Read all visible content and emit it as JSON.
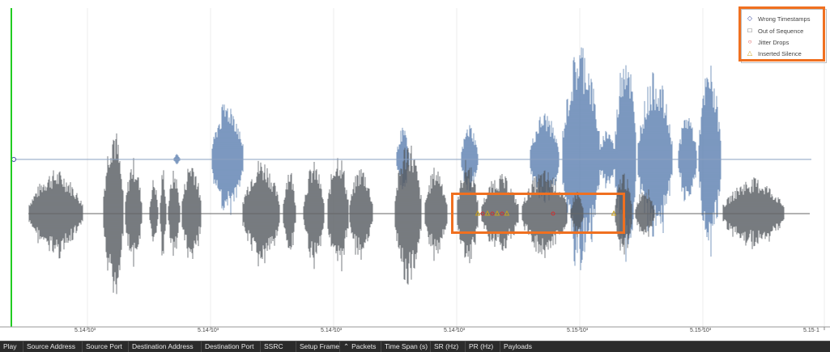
{
  "legend": {
    "items": [
      {
        "label": "Wrong Timestamps",
        "symbol": "◇",
        "color": "#3a4aa0"
      },
      {
        "label": "Out of Sequence",
        "symbol": "□",
        "color": "#333333"
      },
      {
        "label": "Jitter Drops",
        "symbol": "○",
        "color": "#d03030"
      },
      {
        "label": "Inserted Silence",
        "symbol": "△",
        "color": "#c8a020"
      }
    ]
  },
  "axis": {
    "tick_labels": [
      "5.14·10³",
      "5.14·10³",
      "5.14·10³",
      "5.14·10³",
      "5.15·10³",
      "5.15·10³",
      "5.15·1"
    ]
  },
  "colors": {
    "stream_upper": "#5b7fb0",
    "stream_lower": "#555a60",
    "playhead": "#22cc22",
    "highlight": "#f07020"
  },
  "table_header": {
    "columns": [
      "Play",
      "Source Address",
      "Source Port",
      "Destination Address",
      "Destination Port",
      "SSRC",
      "Setup Frame",
      "Packets",
      "Time Span (s)",
      "SR (Hz)",
      "PR (Hz)",
      "Payloads"
    ]
  }
}
